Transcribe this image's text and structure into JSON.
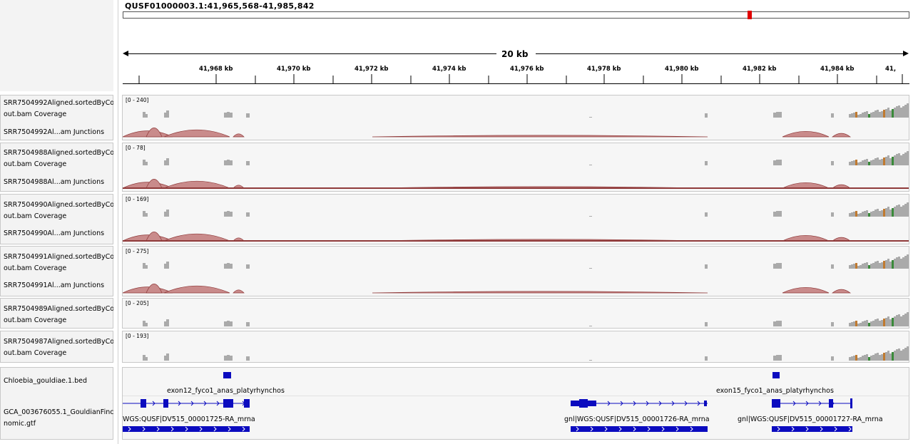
{
  "locus": "QUSF01000003.1:41,965,568-41,985,842",
  "scale_label": "20 kb",
  "ruler_ticks": [
    "41,968 kb",
    "41,970 kb",
    "41,972 kb",
    "41,974 kb",
    "41,976 kb",
    "41,978 kb",
    "41,980 kb",
    "41,982 kb",
    "41,984 kb",
    "41,"
  ],
  "colors": {
    "coverage": "#aaaaaa",
    "junction_fill": "#c98b8b",
    "junction_stroke": "#8f3a3a",
    "feature": "#0b0bbf",
    "ideogram_marker": "#e00000"
  },
  "tracks": [
    {
      "coverage_name_1": "SRR7504992Aligned.sortedByCoord.",
      "coverage_name_2": "out.bam Coverage",
      "range": "[0 - 240]",
      "junction_name": "SRR7504992Al...am Junctions"
    },
    {
      "coverage_name_1": "SRR7504988Aligned.sortedByCoord.",
      "coverage_name_2": "out.bam Coverage",
      "range": "[0 - 78]",
      "junction_name": "SRR7504988Al...am Junctions"
    },
    {
      "coverage_name_1": "SRR7504990Aligned.sortedByCoord.",
      "coverage_name_2": "out.bam Coverage",
      "range": "[0 - 169]",
      "junction_name": "SRR7504990Al...am Junctions"
    },
    {
      "coverage_name_1": "SRR7504991Aligned.sortedByCoord.",
      "coverage_name_2": "out.bam Coverage",
      "range": "[0 - 275]",
      "junction_name": "SRR7504991Al...am Junctions"
    },
    {
      "coverage_name_1": "SRR7504989Aligned.sortedByCoord.",
      "coverage_name_2": "out.bam Coverage",
      "range": "[0 - 205]"
    },
    {
      "coverage_name_1": "SRR7504987Aligned.sortedByCoord.",
      "coverage_name_2": "out.bam Coverage",
      "range": "[0 - 193]"
    }
  ],
  "bed_track": {
    "name": "Chloebia_gouldiae.1.bed",
    "features": [
      "exon12_fyco1_anas_platyrhynchos",
      "exon15_fyco1_anas_platyrhynchos"
    ]
  },
  "gtf_track": {
    "name_1": "GCA_003676055.1_GouldianFinch_ge",
    "name_2": "nomic.gtf",
    "transcripts": [
      "WGS:QUSF|DV515_00001725-RA_mrna",
      "gnl|WGS:QUSF|DV515_00001726-RA_mrna",
      "gnl|WGS:QUSF|DV515_00001727-RA_mrna"
    ]
  }
}
